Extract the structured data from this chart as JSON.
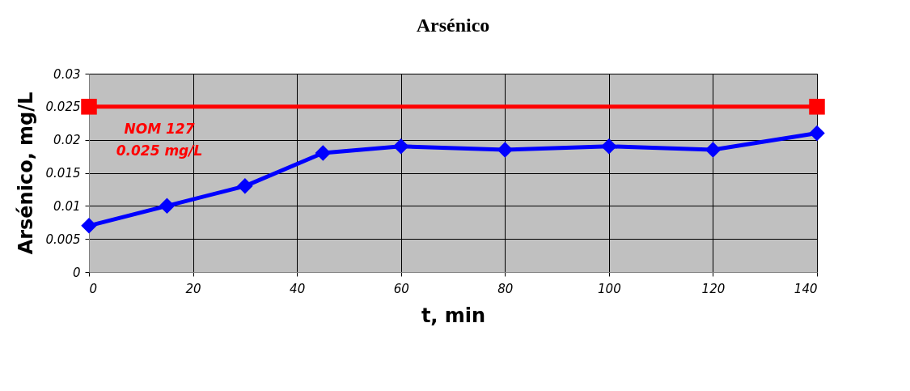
{
  "chart_data": {
    "type": "line",
    "title": "Arsénico",
    "xlabel": "t, min",
    "ylabel": "Arsénico, mg/L",
    "xlim": [
      0,
      140
    ],
    "xticks": [
      0,
      20,
      40,
      60,
      80,
      100,
      120,
      140
    ],
    "ylim": [
      0,
      0.03
    ],
    "yticks": [
      0,
      0.005,
      0.01,
      0.015,
      0.02,
      0.025,
      0.03
    ],
    "grid": true,
    "line_style": "solid",
    "series": [
      {
        "color": "#0000ff",
        "marker": "diamond",
        "x": [
          0,
          15,
          30,
          45,
          60,
          80,
          100,
          120,
          140
        ],
        "values": [
          0.007,
          0.01,
          0.013,
          0.018,
          0.019,
          0.0185,
          0.019,
          0.0185,
          0.021
        ]
      },
      {
        "color": "#ff0000",
        "marker": "square",
        "x": [
          0,
          140
        ],
        "values": [
          0.025,
          0.025
        ]
      }
    ],
    "annotations": [
      "NOM 127",
      "0.025 mg/L"
    ]
  }
}
